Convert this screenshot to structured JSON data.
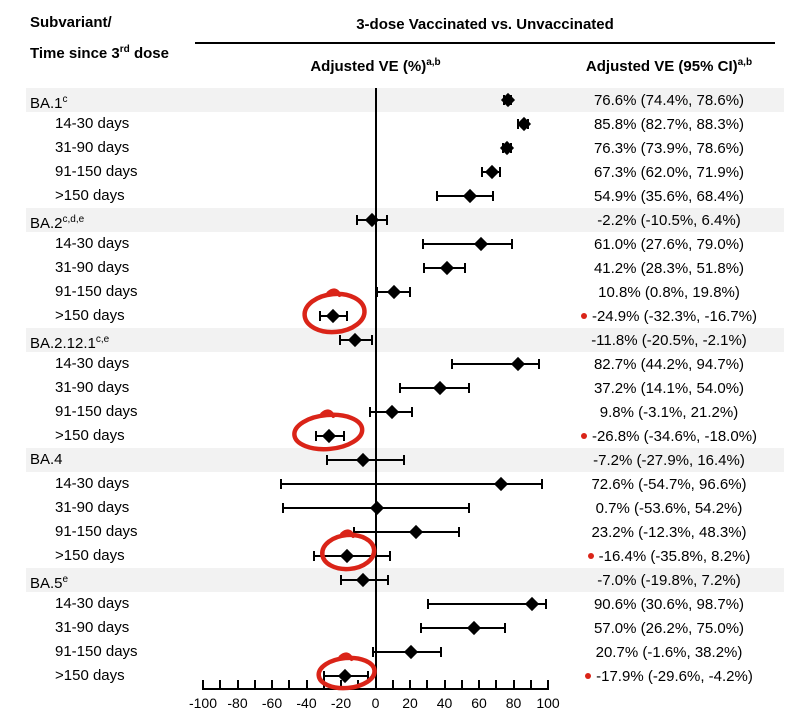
{
  "figure": {
    "col_header": {
      "line1": "Subvariant/",
      "line2_text": "Time since 3",
      "line2_sup": "rd",
      "line2_rest": " dose"
    },
    "group_header": {
      "title": "3-dose Vaccinated vs. Unvaccinated",
      "plot_col": "Adjusted VE (%)",
      "plot_col_sup": "a,b",
      "ci_col": "Adjusted VE (95% CI)",
      "ci_col_sup": "a,b"
    }
  },
  "chart_data": {
    "type": "scatter",
    "variant": "forest-plot-with-error-bars",
    "title": "3-dose Vaccinated vs. Unvaccinated",
    "xlabel": "Adjusted VE (%)",
    "xlim": [
      -100,
      100
    ],
    "x_tick_minor_step": 10,
    "x_tick_labels": [
      "-100",
      "-80",
      "-60",
      "-40",
      "-20",
      "0",
      "20",
      "40",
      "60",
      "80",
      "100"
    ],
    "reference_line_x": 0,
    "legend": "none",
    "rows": [
      {
        "label": "BA.1",
        "sup": "c",
        "indent": false,
        "ve": 76.6,
        "ci": [
          74.4,
          78.6
        ],
        "ci_text": "76.6% (74.4%, 78.6%)",
        "red_dot": false,
        "circled": false
      },
      {
        "label": "14-30 days",
        "sup": "",
        "indent": true,
        "ve": 85.8,
        "ci": [
          82.7,
          88.3
        ],
        "ci_text": "85.8% (82.7%, 88.3%)",
        "red_dot": false,
        "circled": false
      },
      {
        "label": "31-90 days",
        "sup": "",
        "indent": true,
        "ve": 76.3,
        "ci": [
          73.9,
          78.6
        ],
        "ci_text": "76.3% (73.9%, 78.6%)",
        "red_dot": false,
        "circled": false
      },
      {
        "label": "91-150 days",
        "sup": "",
        "indent": true,
        "ve": 67.3,
        "ci": [
          62.0,
          71.9
        ],
        "ci_text": "67.3% (62.0%, 71.9%)",
        "red_dot": false,
        "circled": false
      },
      {
        "label": ">150 days",
        "sup": "",
        "indent": true,
        "ve": 54.9,
        "ci": [
          35.6,
          68.4
        ],
        "ci_text": "54.9% (35.6%, 68.4%)",
        "red_dot": false,
        "circled": false
      },
      {
        "label": "BA.2",
        "sup": "c,d,e",
        "indent": false,
        "ve": -2.2,
        "ci": [
          -10.5,
          6.4
        ],
        "ci_text": "-2.2% (-10.5%, 6.4%)",
        "red_dot": false,
        "circled": false
      },
      {
        "label": "14-30 days",
        "sup": "",
        "indent": true,
        "ve": 61.0,
        "ci": [
          27.6,
          79.0
        ],
        "ci_text": "61.0% (27.6%, 79.0%)",
        "red_dot": false,
        "circled": false
      },
      {
        "label": "31-90 days",
        "sup": "",
        "indent": true,
        "ve": 41.2,
        "ci": [
          28.3,
          51.8
        ],
        "ci_text": "41.2% (28.3%, 51.8%)",
        "red_dot": false,
        "circled": false
      },
      {
        "label": "91-150 days",
        "sup": "",
        "indent": true,
        "ve": 10.8,
        "ci": [
          0.8,
          19.8
        ],
        "ci_text": "10.8% (0.8%, 19.8%)",
        "red_dot": false,
        "circled": false
      },
      {
        "label": ">150 days",
        "sup": "",
        "indent": true,
        "ve": -24.9,
        "ci": [
          -32.3,
          -16.7
        ],
        "ci_text": "-24.9% (-32.3%, -16.7%)",
        "red_dot": true,
        "circled": true
      },
      {
        "label": "BA.2.12.1",
        "sup": "c,e",
        "indent": false,
        "ve": -11.8,
        "ci": [
          -20.5,
          -2.1
        ],
        "ci_text": "-11.8% (-20.5%, -2.1%)",
        "red_dot": false,
        "circled": false
      },
      {
        "label": "14-30 days",
        "sup": "",
        "indent": true,
        "ve": 82.7,
        "ci": [
          44.2,
          94.7
        ],
        "ci_text": "82.7% (44.2%, 94.7%)",
        "red_dot": false,
        "circled": false
      },
      {
        "label": "31-90 days",
        "sup": "",
        "indent": true,
        "ve": 37.2,
        "ci": [
          14.1,
          54.0
        ],
        "ci_text": "37.2% (14.1%, 54.0%)",
        "red_dot": false,
        "circled": false
      },
      {
        "label": "91-150 days",
        "sup": "",
        "indent": true,
        "ve": 9.8,
        "ci": [
          -3.1,
          21.2
        ],
        "ci_text": "9.8% (-3.1%, 21.2%)",
        "red_dot": false,
        "circled": false
      },
      {
        "label": ">150 days",
        "sup": "",
        "indent": true,
        "ve": -26.8,
        "ci": [
          -34.6,
          -18.0
        ],
        "ci_text": "-26.8% (-34.6%, -18.0%)",
        "red_dot": true,
        "circled": true
      },
      {
        "label": "BA.4",
        "sup": "",
        "indent": false,
        "ve": -7.2,
        "ci": [
          -27.9,
          16.4
        ],
        "ci_text": "-7.2% (-27.9%, 16.4%)",
        "red_dot": false,
        "circled": false
      },
      {
        "label": "14-30 days",
        "sup": "",
        "indent": true,
        "ve": 72.6,
        "ci": [
          -54.7,
          96.6
        ],
        "ci_text": "72.6% (-54.7%, 96.6%)",
        "red_dot": false,
        "circled": false
      },
      {
        "label": "31-90 days",
        "sup": "",
        "indent": true,
        "ve": 0.7,
        "ci": [
          -53.6,
          54.2
        ],
        "ci_text": "0.7% (-53.6%, 54.2%)",
        "red_dot": false,
        "circled": false
      },
      {
        "label": "91-150 days",
        "sup": "",
        "indent": true,
        "ve": 23.2,
        "ci": [
          -12.3,
          48.3
        ],
        "ci_text": "23.2% (-12.3%, 48.3%)",
        "red_dot": false,
        "circled": false
      },
      {
        "label": ">150 days",
        "sup": "",
        "indent": true,
        "ve": -16.4,
        "ci": [
          -35.8,
          8.2
        ],
        "ci_text": "-16.4% (-35.8%, 8.2%)",
        "red_dot": true,
        "circled": true
      },
      {
        "label": "BA.5",
        "sup": "e",
        "indent": false,
        "ve": -7.0,
        "ci": [
          -19.8,
          7.2
        ],
        "ci_text": "-7.0% (-19.8%, 7.2%)",
        "red_dot": false,
        "circled": false
      },
      {
        "label": "14-30 days",
        "sup": "",
        "indent": true,
        "ve": 90.6,
        "ci": [
          30.6,
          98.7
        ],
        "ci_text": "90.6% (30.6%, 98.7%)",
        "red_dot": false,
        "circled": false
      },
      {
        "label": "31-90 days",
        "sup": "",
        "indent": true,
        "ve": 57.0,
        "ci": [
          26.2,
          75.0
        ],
        "ci_text": "57.0% (26.2%, 75.0%)",
        "red_dot": false,
        "circled": false
      },
      {
        "label": "91-150 days",
        "sup": "",
        "indent": true,
        "ve": 20.7,
        "ci": [
          -1.6,
          38.2
        ],
        "ci_text": "20.7% (-1.6%, 38.2%)",
        "red_dot": false,
        "circled": false
      },
      {
        "label": ">150 days",
        "sup": "",
        "indent": true,
        "ve": -17.9,
        "ci": [
          -29.6,
          -4.2
        ],
        "ci_text": "-17.9% (-29.6%, -4.2%)",
        "red_dot": true,
        "circled": true
      }
    ]
  },
  "colors": {
    "band": "#f2f2f2",
    "marker": "#000000",
    "annotation_red": "#da2418"
  }
}
